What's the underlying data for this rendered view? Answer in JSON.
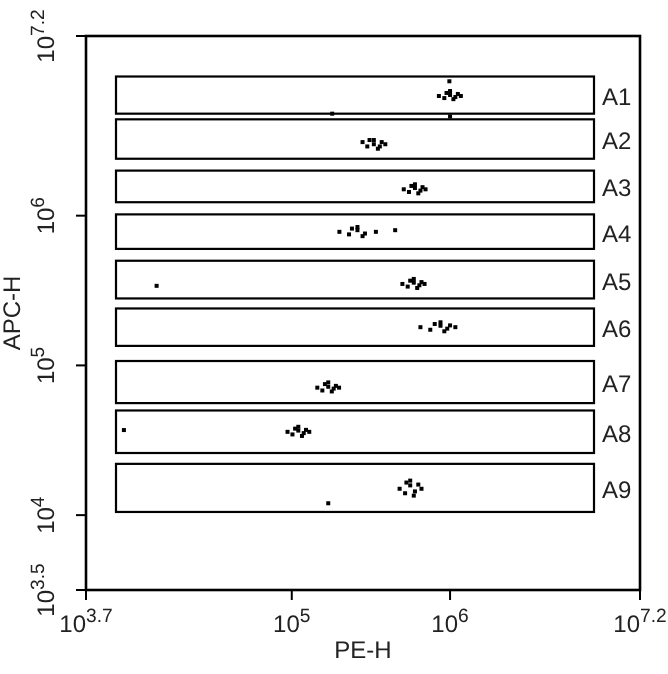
{
  "chart_data": {
    "type": "scatter",
    "xlabel": "PE-H",
    "ylabel": "APC-H",
    "log": "xy",
    "marker": "square",
    "xlim": [
      5012,
      15848932
    ],
    "ylim": [
      3162,
      15848932
    ],
    "xticks": [
      {
        "value": 5012,
        "label": "10$^{3.7}$"
      },
      {
        "value": 100000,
        "label": "10$^{5}$"
      },
      {
        "value": 1000000,
        "label": "10$^{6}$"
      },
      {
        "value": 15848932,
        "label": "10$^{7.2}$"
      }
    ],
    "yticks": [
      {
        "value": 3162,
        "label": "10$^{3.5}$"
      },
      {
        "value": 10000,
        "label": "10$^{4}$"
      },
      {
        "value": 100000,
        "label": "10$^{5}$"
      },
      {
        "value": 1000000,
        "label": "10$^{6}$"
      },
      {
        "value": 15848932,
        "label": "10$^{7.2}$"
      }
    ],
    "series": [
      {
        "color": "#000000",
        "x": [
          850000,
          920000,
          1000000,
          1080000,
          1170000,
          950000,
          1050000,
          1000000,
          1120000,
          330000,
          300000,
          280000,
          360000,
          390000,
          310000,
          350000,
          330000,
          370000,
          510000,
          550000,
          600000,
          650000,
          700000,
          570000,
          630000,
          600000,
          670000,
          200000,
          230000,
          260000,
          290000,
          340000,
          240000,
          280000,
          260000,
          450000,
          500000,
          540000,
          590000,
          640000,
          690000,
          560000,
          620000,
          590000,
          660000,
          650000,
          750000,
          870000,
          960000,
          1080000,
          800000,
          920000,
          870000,
          1000000,
          145000,
          156000,
          170000,
          184000,
          199000,
          162000,
          179000,
          170000,
          190000,
          94000,
          101000,
          110000,
          119000,
          129000,
          105000,
          116000,
          110000,
          123000,
          480000,
          520000,
          560000,
          600000,
          660000,
          530000,
          590000,
          560000,
          630000,
          990000,
          1000000,
          8700,
          170000,
          14000,
          180000
        ],
        "values": [
          6300000,
          6100000,
          6400000,
          6200000,
          6300000,
          6600000,
          6000000,
          6800000,
          6500000,
          3000000,
          2900000,
          3100000,
          2900000,
          3000000,
          3200000,
          2800000,
          3200000,
          3100000,
          1500000,
          1440000,
          1530000,
          1470000,
          1500000,
          1580000,
          1410000,
          1620000,
          1550000,
          780000,
          750000,
          800000,
          760000,
          780000,
          820000,
          730000,
          840000,
          800000,
          350000,
          336000,
          357000,
          343000,
          350000,
          368000,
          329000,
          378000,
          360000,
          180000,
          173000,
          184000,
          176000,
          180000,
          189000,
          169000,
          194000,
          185000,
          71000,
          68000,
          72000,
          70000,
          71000,
          75000,
          67000,
          77000,
          73000,
          36000,
          34600,
          36700,
          35300,
          36000,
          37800,
          33800,
          38900,
          37100,
          15000,
          14000,
          15800,
          14400,
          15000,
          16500,
          13500,
          17000,
          16000,
          7900000,
          4600000,
          37000,
          12000,
          340000,
          4800000
        ]
      }
    ],
    "bands": [
      {
        "axis": "y",
        "from": 4800000,
        "to": 8500000,
        "label": "A1"
      },
      {
        "axis": "y",
        "from": 2400000,
        "to": 4400000,
        "label": "A2"
      },
      {
        "axis": "y",
        "from": 1230000,
        "to": 2000000,
        "label": "A3"
      },
      {
        "axis": "y",
        "from": 600000,
        "to": 1020000,
        "label": "A4"
      },
      {
        "axis": "y",
        "from": 280000,
        "to": 500000,
        "label": "A5"
      },
      {
        "axis": "y",
        "from": 135000,
        "to": 240000,
        "label": "A6"
      },
      {
        "axis": "y",
        "from": 56000,
        "to": 107000,
        "label": "A7"
      },
      {
        "axis": "y",
        "from": 26000,
        "to": 50000,
        "label": "A8"
      },
      {
        "axis": "y",
        "from": 10500,
        "to": 22000,
        "label": "A9"
      }
    ]
  }
}
